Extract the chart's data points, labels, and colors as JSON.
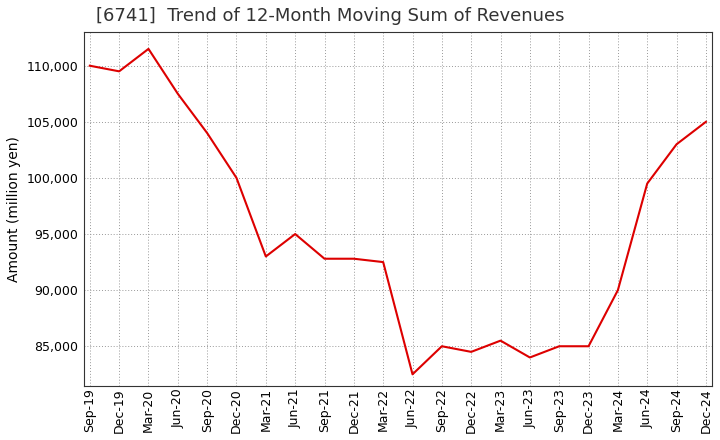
{
  "title": "[6741]  Trend of 12-Month Moving Sum of Revenues",
  "ylabel": "Amount (million yen)",
  "line_color": "#dd0000",
  "background_color": "#ffffff",
  "grid_color": "#999999",
  "title_color": "#333333",
  "x_labels": [
    "Sep-19",
    "Dec-19",
    "Mar-20",
    "Jun-20",
    "Sep-20",
    "Dec-20",
    "Mar-21",
    "Jun-21",
    "Sep-21",
    "Dec-21",
    "Mar-22",
    "Jun-22",
    "Sep-22",
    "Dec-22",
    "Mar-23",
    "Jun-23",
    "Sep-23",
    "Dec-23",
    "Mar-24",
    "Jun-24",
    "Sep-24",
    "Dec-24"
  ],
  "values": [
    110000,
    109500,
    111500,
    107500,
    104000,
    100000,
    93000,
    95000,
    92800,
    92800,
    92500,
    82500,
    85000,
    84500,
    85500,
    84000,
    85000,
    85000,
    90000,
    99500,
    103000,
    105000
  ],
  "ylim": [
    81500,
    113000
  ],
  "yticks": [
    85000,
    90000,
    95000,
    100000,
    105000,
    110000
  ],
  "title_fontsize": 13,
  "label_fontsize": 10,
  "tick_fontsize": 9
}
